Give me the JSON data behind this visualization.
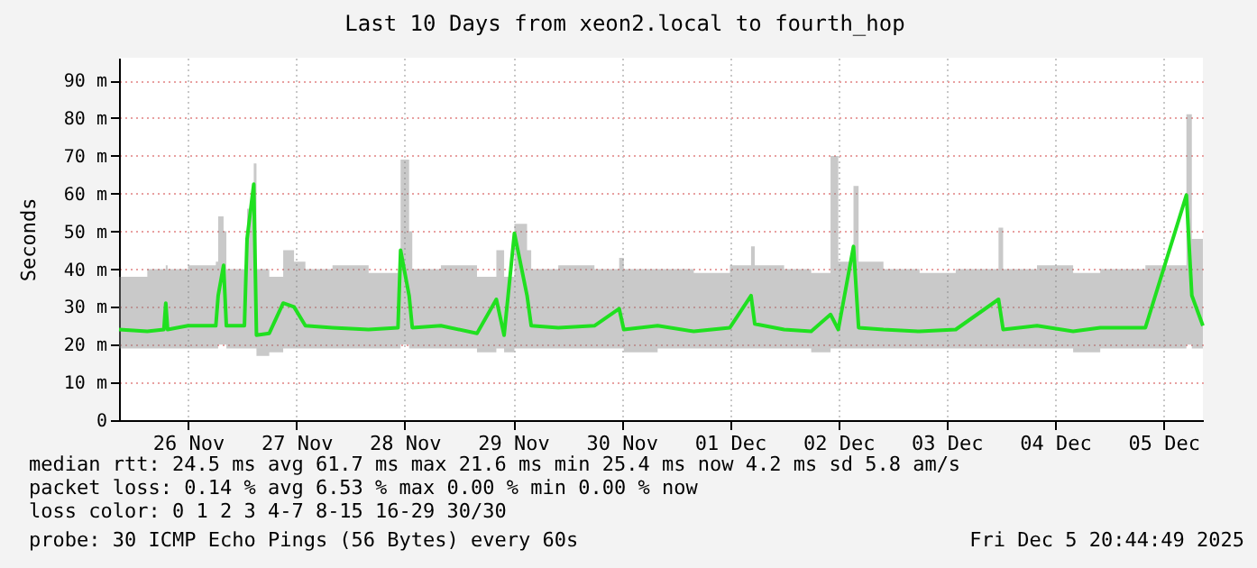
{
  "chart_data": {
    "type": "line",
    "title": "Last 10 Days from xeon2.local to fourth_hop",
    "ylabel": "Seconds",
    "xlim": [
      "2025-11-25T20:44",
      "2025-12-05T20:44"
    ],
    "xticks": [
      {
        "value": "2025-11-26T12:00",
        "label": "26 Nov"
      },
      {
        "value": "2025-11-27T12:00",
        "label": "27 Nov"
      },
      {
        "value": "2025-11-28T12:00",
        "label": "28 Nov"
      },
      {
        "value": "2025-11-29T12:00",
        "label": "29 Nov"
      },
      {
        "value": "2025-11-30T12:00",
        "label": "30 Nov"
      },
      {
        "value": "2025-12-01T12:00",
        "label": "01 Dec"
      },
      {
        "value": "2025-12-02T12:00",
        "label": "02 Dec"
      },
      {
        "value": "2025-12-03T12:00",
        "label": "03 Dec"
      },
      {
        "value": "2025-12-04T12:00",
        "label": "04 Dec"
      },
      {
        "value": "2025-12-05T12:00",
        "label": "05 Dec"
      }
    ],
    "ylim": [
      0,
      96
    ],
    "yticks": [
      0,
      {
        "value": 10,
        "label": "10 m"
      },
      {
        "value": 20,
        "label": "20 m"
      },
      {
        "value": 30,
        "label": "30 m"
      },
      {
        "value": 40,
        "label": "40 m"
      },
      {
        "value": 50,
        "label": "50 m"
      },
      {
        "value": 60,
        "label": "60 m"
      },
      {
        "value": 70,
        "label": "70 m"
      },
      {
        "value": 80,
        "label": "80 m"
      },
      {
        "value": 90,
        "label": "90 m"
      }
    ],
    "grid": true,
    "line_style": "solid",
    "series": [
      {
        "color": "#20e020",
        "x": [
          "2025-11-25T20:44",
          "2025-11-26T03:00",
          "2025-11-26T06:40",
          "2025-11-26T07:05",
          "2025-11-26T07:30",
          "2025-11-26T12:00",
          "2025-11-26T18:10",
          "2025-11-26T18:41",
          "2025-11-26T19:53",
          "2025-11-26T20:30",
          "2025-11-27T00:30",
          "2025-11-27T01:05",
          "2025-11-27T02:34",
          "2025-11-27T03:10",
          "2025-11-27T06:00",
          "2025-11-27T09:05",
          "2025-11-27T11:29",
          "2025-11-27T14:00",
          "2025-11-27T20:00",
          "2025-11-28T04:00",
          "2025-11-28T10:30",
          "2025-11-28T11:05",
          "2025-11-28T12:58",
          "2025-11-28T13:40",
          "2025-11-28T20:00",
          "2025-11-29T04:00",
          "2025-11-29T08:17",
          "2025-11-29T10:00",
          "2025-11-29T12:17",
          "2025-11-29T15:05",
          "2025-11-29T16:00",
          "2025-11-29T22:00",
          "2025-11-30T06:00",
          "2025-11-30T11:29",
          "2025-11-30T12:30",
          "2025-11-30T20:00",
          "2025-12-01T04:00",
          "2025-12-01T12:00",
          "2025-12-01T16:41",
          "2025-12-01T17:30",
          "2025-12-02T00:00",
          "2025-12-02T06:00",
          "2025-12-02T10:17",
          "2025-12-02T12:00",
          "2025-12-02T15:22",
          "2025-12-02T16:30",
          "2025-12-02T22:00",
          "2025-12-03T06:00",
          "2025-12-03T14:00",
          "2025-12-03T23:29",
          "2025-12-04T00:30",
          "2025-12-04T08:00",
          "2025-12-04T16:00",
          "2025-12-04T22:00",
          "2025-12-05T08:00",
          "2025-12-05T17:05",
          "2025-12-05T18:17",
          "2025-12-05T20:44"
        ],
        "values": [
          24,
          23.5,
          24,
          31,
          24,
          25,
          25,
          33,
          41,
          25,
          25,
          48,
          62.5,
          22.5,
          23,
          31,
          30,
          25,
          24.5,
          24,
          24.5,
          45,
          33,
          24.5,
          25,
          23,
          32,
          22.5,
          49.5,
          33,
          25,
          24.5,
          25,
          29.5,
          24,
          25,
          23.5,
          24.5,
          33,
          25.5,
          24,
          23.5,
          28,
          24,
          46,
          24.5,
          24,
          23.5,
          24,
          32,
          24,
          25,
          23.5,
          24.5,
          24.5,
          59.6,
          33,
          25
        ],
        "lower": [
          19,
          19,
          19,
          19,
          19,
          19,
          19,
          20,
          20,
          19,
          19,
          19,
          19,
          17,
          18,
          19,
          19,
          19,
          19,
          19,
          19,
          20,
          19,
          19,
          19,
          18,
          19,
          18,
          19,
          19,
          19,
          19,
          19,
          19,
          18,
          19,
          19,
          19,
          19,
          19,
          19,
          18,
          19,
          19,
          19,
          19,
          19,
          19,
          19,
          19,
          19,
          19,
          18,
          19,
          19,
          20,
          19,
          19
        ],
        "upper": [
          38,
          40,
          40,
          41,
          40,
          41,
          42,
          54,
          50,
          40,
          41,
          56,
          68,
          40,
          38,
          45,
          42,
          40,
          41,
          39,
          40,
          69,
          50,
          40,
          41,
          38,
          45,
          38,
          52,
          45,
          40,
          41,
          40,
          43,
          40,
          40,
          39,
          41,
          46,
          41,
          40,
          39,
          70,
          42,
          62,
          42,
          40,
          39,
          40,
          51,
          40,
          41,
          39,
          40,
          41,
          81,
          48,
          40
        ]
      }
    ],
    "annotations": [
      "median rtt: 24.5 ms avg 61.7 ms max 21.6 ms min 25.4 ms now 4.2 ms sd 5.8 am/s",
      "packet loss: 0.14 % avg 6.53 % max 0.00 % min 0.00 % now",
      "loss color: 0 1 2 3 4-7 8-15 16-29 30/30",
      "probe: 30 ICMP Echo Pings (56 Bytes) every 60s",
      "Fri Dec 5 20:44:49 2025"
    ]
  }
}
